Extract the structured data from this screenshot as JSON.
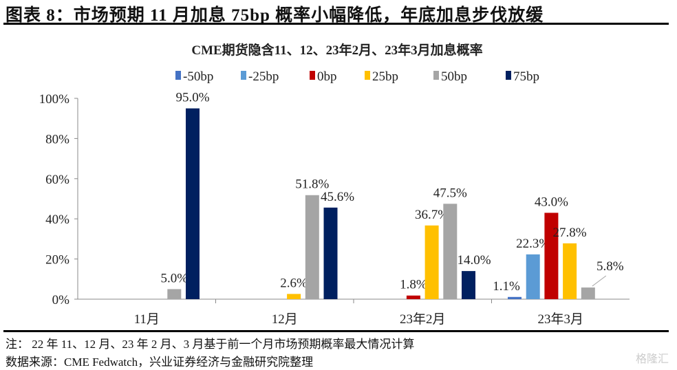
{
  "figure_title": "图表 8：市场预期 11 月加息 75bp 概率小幅降低，年底加息步伐放缓",
  "note": "注：  22 年 11、12 月、23 年 2 月、3 月基于前一个月市场预期概率最大情况计算",
  "source": "数据来源：CME Fedwatch，兴业证券经济与金融研究院整理",
  "watermark": "格隆汇",
  "chart_data": {
    "type": "bar",
    "title": "CME期货隐含11、12、23年2月、23年3月加息概率",
    "categories": [
      "11月",
      "12月",
      "23年2月",
      "23年3月"
    ],
    "ylim": [
      0,
      100
    ],
    "yticks": [
      0,
      20,
      40,
      60,
      80,
      100
    ],
    "ytick_labels": [
      "0%",
      "20%",
      "40%",
      "60%",
      "80%",
      "100%"
    ],
    "legend_position": "top",
    "grid": false,
    "series": [
      {
        "name": "-50bp",
        "color": "#4472C4",
        "values": [
          null,
          null,
          null,
          1.1
        ],
        "labels": [
          "",
          "",
          "",
          "1.1%"
        ]
      },
      {
        "name": "-25bp",
        "color": "#5B9BD5",
        "values": [
          null,
          null,
          null,
          22.3
        ],
        "labels": [
          "",
          "",
          "",
          "22.3%"
        ]
      },
      {
        "name": "0bp",
        "color": "#C00000",
        "values": [
          null,
          null,
          1.8,
          43.0
        ],
        "labels": [
          "",
          "",
          "1.8%",
          "43.0%"
        ]
      },
      {
        "name": "25bp",
        "color": "#FFC000",
        "values": [
          null,
          2.6,
          36.7,
          27.8
        ],
        "labels": [
          "",
          "2.6%",
          "36.7%",
          "27.8%"
        ]
      },
      {
        "name": "50bp",
        "color": "#A5A5A5",
        "values": [
          5.0,
          51.8,
          47.5,
          5.8
        ],
        "labels": [
          "5.0%",
          "51.8%",
          "47.5%",
          "5.8%"
        ]
      },
      {
        "name": "75bp",
        "color": "#002060",
        "values": [
          95.0,
          45.6,
          14.0,
          null
        ],
        "labels": [
          "95.0%",
          "45.6%",
          "14.0%",
          ""
        ]
      }
    ]
  }
}
